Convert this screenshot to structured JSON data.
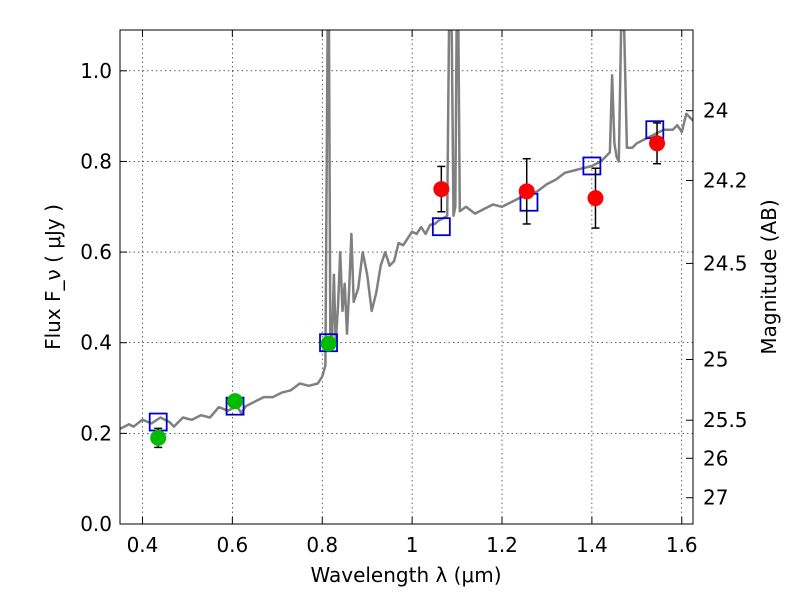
{
  "chart_data": {
    "type": "scatter",
    "xlabel": "Wavelength  λ (μm)",
    "ylabel": "Flux  F_ν  ( μJy )",
    "ylabel_right": "Magnitude (AB)",
    "xlim": [
      0.35,
      1.625
    ],
    "ylim": [
      0.0,
      1.09
    ],
    "x_ticks": [
      0.4,
      0.6,
      0.8,
      1.0,
      1.2,
      1.4,
      1.6
    ],
    "x_tick_labels": [
      "0.4",
      "0.6",
      "0.8",
      "1",
      "1.2",
      "1.4",
      "1.6"
    ],
    "y_ticks": [
      0.0,
      0.2,
      0.4,
      0.6,
      0.8,
      1.0
    ],
    "y_tick_labels": [
      "0.0",
      "0.2",
      "0.4",
      "0.6",
      "0.8",
      "1.0"
    ],
    "right_ticks": [
      {
        "label": "24",
        "flux": 0.912
      },
      {
        "label": "24.2",
        "flux": 0.758
      },
      {
        "label": "24.5",
        "flux": 0.575
      },
      {
        "label": "25",
        "flux": 0.363
      },
      {
        "label": "25.5",
        "flux": 0.229
      },
      {
        "label": "26",
        "flux": 0.145
      },
      {
        "label": "27",
        "flux": 0.058
      }
    ],
    "grid": true,
    "colors": {
      "model": "#808080",
      "green": "#00bb00",
      "red": "#ff0000",
      "box": "#0000cc",
      "errbar": "#000000"
    },
    "series": [
      {
        "points": [
          {
            "x": 0.435,
            "y": 0.19,
            "err": 0.021
          },
          {
            "x": 0.606,
            "y": 0.271,
            "err": 0.013
          },
          {
            "x": 0.814,
            "y": 0.398,
            "err": 0.013
          }
        ]
      },
      {
        "points": [
          {
            "x": 1.065,
            "y": 0.739,
            "err": 0.05
          },
          {
            "x": 1.255,
            "y": 0.734,
            "err": 0.072
          },
          {
            "x": 1.408,
            "y": 0.719,
            "err": 0.066
          },
          {
            "x": 1.545,
            "y": 0.84,
            "err": 0.045
          }
        ]
      },
      {
        "points": [
          {
            "x": 0.435,
            "y": 0.225
          },
          {
            "x": 0.606,
            "y": 0.26
          },
          {
            "x": 0.814,
            "y": 0.4
          },
          {
            "x": 1.065,
            "y": 0.656
          },
          {
            "x": 1.26,
            "y": 0.71
          },
          {
            "x": 1.4,
            "y": 0.79
          },
          {
            "x": 1.54,
            "y": 0.87
          }
        ]
      },
      {
        "line": [
          [
            0.35,
            0.21
          ],
          [
            0.37,
            0.22
          ],
          [
            0.38,
            0.215
          ],
          [
            0.4,
            0.23
          ],
          [
            0.42,
            0.222
          ],
          [
            0.44,
            0.235
          ],
          [
            0.46,
            0.225
          ],
          [
            0.47,
            0.215
          ],
          [
            0.49,
            0.235
          ],
          [
            0.51,
            0.23
          ],
          [
            0.53,
            0.24
          ],
          [
            0.55,
            0.235
          ],
          [
            0.57,
            0.258
          ],
          [
            0.59,
            0.25
          ],
          [
            0.61,
            0.26
          ],
          [
            0.62,
            0.245
          ],
          [
            0.63,
            0.26
          ],
          [
            0.65,
            0.27
          ],
          [
            0.67,
            0.28
          ],
          [
            0.69,
            0.28
          ],
          [
            0.71,
            0.29
          ],
          [
            0.73,
            0.295
          ],
          [
            0.75,
            0.31
          ],
          [
            0.77,
            0.305
          ],
          [
            0.79,
            0.31
          ],
          [
            0.8,
            0.325
          ],
          [
            0.807,
            0.35
          ],
          [
            0.812,
            1.09
          ],
          [
            0.815,
            1.09
          ],
          [
            0.818,
            0.42
          ],
          [
            0.822,
            0.41
          ],
          [
            0.826,
            0.55
          ],
          [
            0.83,
            0.4
          ],
          [
            0.835,
            0.48
          ],
          [
            0.84,
            0.6
          ],
          [
            0.845,
            0.47
          ],
          [
            0.85,
            0.53
          ],
          [
            0.855,
            0.42
          ],
          [
            0.86,
            0.52
          ],
          [
            0.865,
            0.64
          ],
          [
            0.87,
            0.49
          ],
          [
            0.88,
            0.52
          ],
          [
            0.89,
            0.6
          ],
          [
            0.9,
            0.55
          ],
          [
            0.91,
            0.47
          ],
          [
            0.92,
            0.51
          ],
          [
            0.93,
            0.57
          ],
          [
            0.94,
            0.6
          ],
          [
            0.95,
            0.57
          ],
          [
            0.96,
            0.58
          ],
          [
            0.97,
            0.62
          ],
          [
            0.98,
            0.615
          ],
          [
            0.99,
            0.63
          ],
          [
            1.0,
            0.645
          ],
          [
            1.01,
            0.64
          ],
          [
            1.02,
            0.655
          ],
          [
            1.03,
            0.64
          ],
          [
            1.04,
            0.66
          ],
          [
            1.05,
            0.662
          ],
          [
            1.06,
            0.67
          ],
          [
            1.07,
            0.675
          ],
          [
            1.078,
            0.68
          ],
          [
            1.082,
            1.09
          ],
          [
            1.088,
            1.09
          ],
          [
            1.092,
            0.68
          ],
          [
            1.096,
            0.7
          ],
          [
            1.099,
            1.09
          ],
          [
            1.103,
            1.09
          ],
          [
            1.106,
            0.69
          ],
          [
            1.12,
            0.7
          ],
          [
            1.14,
            0.685
          ],
          [
            1.16,
            0.695
          ],
          [
            1.18,
            0.705
          ],
          [
            1.2,
            0.7
          ],
          [
            1.22,
            0.71
          ],
          [
            1.24,
            0.72
          ],
          [
            1.26,
            0.725
          ],
          [
            1.28,
            0.735
          ],
          [
            1.3,
            0.75
          ],
          [
            1.32,
            0.76
          ],
          [
            1.34,
            0.775
          ],
          [
            1.36,
            0.78
          ],
          [
            1.38,
            0.785
          ],
          [
            1.4,
            0.79
          ],
          [
            1.42,
            0.8
          ],
          [
            1.44,
            0.82
          ],
          [
            1.445,
            0.99
          ],
          [
            1.45,
            0.84
          ],
          [
            1.455,
            0.81
          ],
          [
            1.46,
            0.8
          ],
          [
            1.465,
            1.09
          ],
          [
            1.472,
            1.09
          ],
          [
            1.478,
            0.83
          ],
          [
            1.49,
            0.83
          ],
          [
            1.5,
            0.84
          ],
          [
            1.52,
            0.85
          ],
          [
            1.54,
            0.86
          ],
          [
            1.56,
            0.87
          ],
          [
            1.58,
            0.87
          ],
          [
            1.59,
            0.88
          ],
          [
            1.6,
            0.865
          ],
          [
            1.61,
            0.905
          ],
          [
            1.625,
            0.89
          ]
        ]
      }
    ]
  }
}
